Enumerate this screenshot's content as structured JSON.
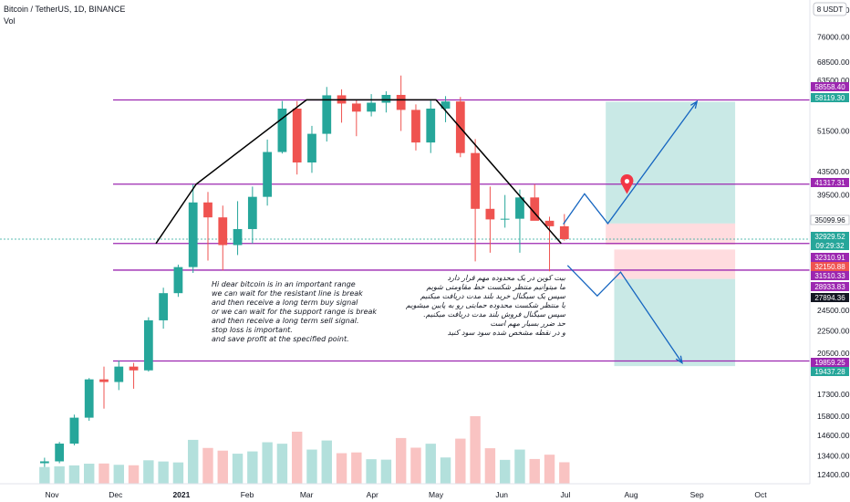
{
  "header": {
    "symbol": "Bitcoin / TetherUS, 1D, BINANCE",
    "indicator": "Vol"
  },
  "scale_badge": "8 USDT",
  "colors": {
    "level_line": "#9c27b0",
    "up_candle": "#26a69a",
    "down_candle": "#ef5350",
    "target_zone": "#b2dfdb",
    "stop_zone": "#ffcdd2",
    "projection": "#1565c0",
    "trend": "#000000",
    "pin": "#f23645",
    "label_purple": "#9c27b0",
    "label_teal": "#26a69a",
    "label_red": "#ef5350",
    "label_black": "#131722"
  },
  "notes": {
    "english": "Hi dear bitcoin is in an important range\nwe can wait for the resistant line is break\nand then receive a long term buy signal\nor we can wait for the support range is break\nand then receive a long term sell signal.\nstop loss is important.\nand save profit at the specified point.",
    "persian": "بیت کوین در یک محدوده مهم قرار دارد\nما میتوانیم منتظر شکست خط مقاومتی شویم\nسپس یک سیگنال خرید بلند مدت دریافت میکنیم\nیا منتظر شکست محدوده حمایتی رو به پایین میشویم\nسپس سیگنال فروش بلند مدت دریافت میکنیم.\nحد ضرر بسیار مهم است\nو در نقطه مشخص شده سود سود کنید"
  },
  "chart_data": {
    "type": "candlestick",
    "symbol": "Bitcoin / TetherUS",
    "timeframe": "1D",
    "exchange": "BINANCE",
    "x_axis": {
      "tick_labels": [
        "Nov",
        "Dec",
        "2021",
        "Feb",
        "Mar",
        "Apr",
        "May",
        "Jun",
        "Jul",
        "Aug",
        "Sep",
        "Oct"
      ],
      "tick_dates": [
        "2020-11-01",
        "2020-12-01",
        "2021-01-01",
        "2021-02-01",
        "2021-03-01",
        "2021-04-01",
        "2021-05-01",
        "2021-06-01",
        "2021-07-01",
        "2021-08-01",
        "2021-09-01",
        "2021-10-01"
      ]
    },
    "y_axis": {
      "scale": "log",
      "unit": "USDT",
      "range": [
        11500,
        100000
      ],
      "tick_labels": [
        "85000.00",
        "76000.00",
        "68500.00",
        "63500.00",
        "51500.00",
        "43500.00",
        "39500.00",
        "24500.00",
        "22500.00",
        "20500.00",
        "17300.00",
        "15800.00",
        "14600.00",
        "13400.00",
        "12400.00"
      ]
    },
    "price_labels": [
      {
        "text": "58558.40",
        "style": "purple"
      },
      {
        "text": "58119.30",
        "style": "teal"
      },
      {
        "text": "41317.31",
        "style": "purple"
      },
      {
        "text": "35099.96",
        "style": "plain"
      },
      {
        "text": "32929.52",
        "style": "teal"
      },
      {
        "text": "09:29:32",
        "style": "teal"
      },
      {
        "text": "32310.91",
        "style": "purple"
      },
      {
        "text": "32150.88",
        "style": "red"
      },
      {
        "text": "31510.33",
        "style": "purple"
      },
      {
        "text": "28933.83",
        "style": "purple"
      },
      {
        "text": "27894.36",
        "style": "black"
      },
      {
        "text": "19859.25",
        "style": "purple"
      },
      {
        "text": "19437.28",
        "style": "teal"
      }
    ],
    "horizontal_levels": [
      58558.4,
      41317.31,
      32310.91,
      28933.83,
      19859.25
    ],
    "trend_lines": [
      [
        [
          "2020-12-20",
          32310
        ],
        [
          "2021-01-08",
          41317
        ],
        [
          "2021-03-01",
          58600
        ],
        [
          "2021-05-01",
          58600
        ],
        [
          "2021-06-29",
          32310
        ]
      ]
    ],
    "zones": [
      {
        "kind": "target",
        "from": "2021-07-20",
        "to": "2021-09-19",
        "price_from": 35099.96,
        "price_to": 58119.3
      },
      {
        "kind": "stop",
        "from": "2021-07-20",
        "to": "2021-09-19",
        "price_from": 32150.88,
        "price_to": 35099.96
      },
      {
        "kind": "stop",
        "from": "2021-07-24",
        "to": "2021-09-19",
        "price_from": 27894.36,
        "price_to": 31510.33
      },
      {
        "kind": "target",
        "from": "2021-07-24",
        "to": "2021-09-19",
        "price_from": 19437.28,
        "price_to": 27894.36
      }
    ],
    "projections": [
      [
        [
          "2021-06-30",
          35000
        ],
        [
          "2021-07-10",
          39700
        ],
        [
          "2021-07-21",
          35100
        ],
        [
          "2021-09-01",
          58200
        ]
      ],
      [
        [
          "2021-07-02",
          29500
        ],
        [
          "2021-07-16",
          26000
        ],
        [
          "2021-07-27",
          28700
        ],
        [
          "2021-08-25",
          19700
        ]
      ]
    ],
    "candles": [
      [
        "2020-10-25",
        13000,
        13300,
        12800,
        13100
      ],
      [
        "2020-11-01",
        13100,
        14200,
        13000,
        14100
      ],
      [
        "2020-11-08",
        14100,
        15900,
        14000,
        15700
      ],
      [
        "2020-11-15",
        15700,
        18500,
        15500,
        18400
      ],
      [
        "2020-11-22",
        18400,
        19400,
        16300,
        18200
      ],
      [
        "2020-11-29",
        18200,
        19900,
        17600,
        19400
      ],
      [
        "2020-12-06",
        19400,
        19700,
        17700,
        19100
      ],
      [
        "2020-12-13",
        19100,
        23800,
        19000,
        23500
      ],
      [
        "2020-12-20",
        23500,
        26900,
        22700,
        26300
      ],
      [
        "2020-12-27",
        26300,
        29600,
        25900,
        29300
      ],
      [
        "2021-01-03",
        29300,
        41300,
        28600,
        38300
      ],
      [
        "2021-01-10",
        38300,
        40000,
        30100,
        36000
      ],
      [
        "2021-01-17",
        36000,
        37800,
        28900,
        32100
      ],
      [
        "2021-01-24",
        32100,
        38500,
        30800,
        34300
      ],
      [
        "2021-01-31",
        34300,
        40900,
        32300,
        39200
      ],
      [
        "2021-02-07",
        39200,
        49700,
        37800,
        47200
      ],
      [
        "2021-02-14",
        47200,
        58300,
        46900,
        56500
      ],
      [
        "2021-02-21",
        56500,
        58300,
        43000,
        45200
      ],
      [
        "2021-02-28",
        45200,
        52600,
        43300,
        50900
      ],
      [
        "2021-03-07",
        50900,
        61800,
        49300,
        59700
      ],
      [
        "2021-03-14",
        59700,
        61200,
        53300,
        57700
      ],
      [
        "2021-03-21",
        57700,
        58600,
        50400,
        55800
      ],
      [
        "2021-03-28",
        55800,
        60000,
        54700,
        57900
      ],
      [
        "2021-04-04",
        57900,
        60700,
        55600,
        59800
      ],
      [
        "2021-04-11",
        59800,
        64800,
        51500,
        56200
      ],
      [
        "2021-04-18",
        56200,
        57500,
        47500,
        49100
      ],
      [
        "2021-04-25",
        49100,
        58400,
        47000,
        56500
      ],
      [
        "2021-05-02",
        56500,
        59500,
        53400,
        58200
      ],
      [
        "2021-05-09",
        58200,
        59300,
        46200,
        47000
      ],
      [
        "2021-05-16",
        47000,
        49800,
        30000,
        37300
      ],
      [
        "2021-05-23",
        37300,
        40900,
        31100,
        35700
      ],
      [
        "2021-05-30",
        35700,
        39500,
        34500,
        35800
      ],
      [
        "2021-06-06",
        35800,
        40400,
        31100,
        39100
      ],
      [
        "2021-06-13",
        39100,
        41300,
        35900,
        35500
      ],
      [
        "2021-06-20",
        35500,
        36100,
        28800,
        34700
      ],
      [
        "2021-06-27",
        34700,
        36500,
        32700,
        32900
      ]
    ]
  }
}
